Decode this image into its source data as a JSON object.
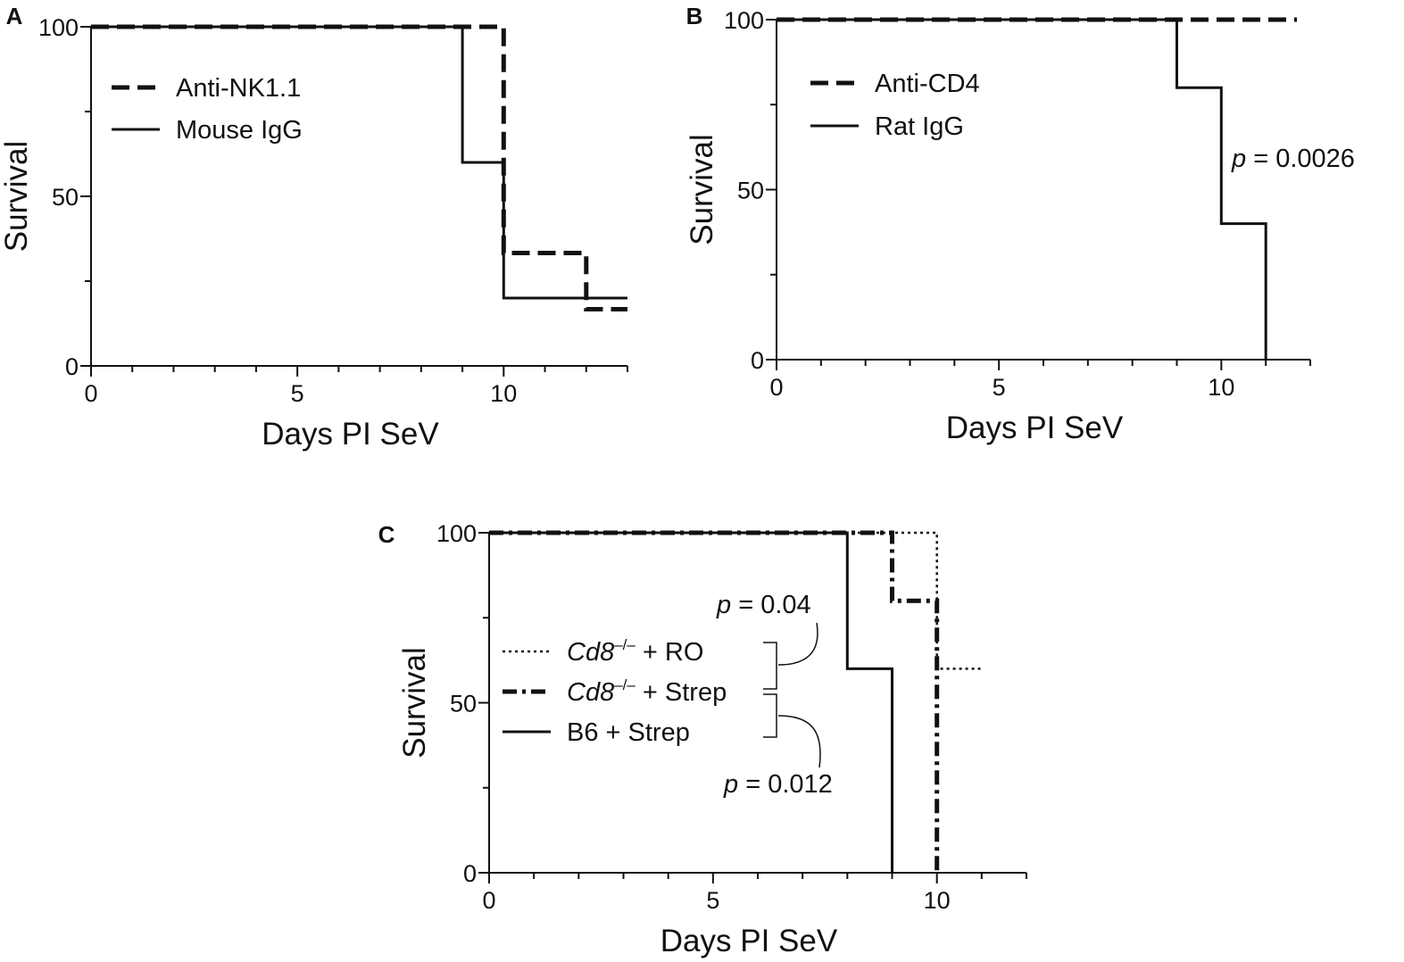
{
  "chart_data": [
    {
      "panel_label": "A",
      "type": "line",
      "step": true,
      "xlabel": "Days PI SeV",
      "ylabel": "Survival",
      "xlim": [
        0,
        13
      ],
      "ylim": [
        0,
        100
      ],
      "xticks": [
        0,
        5,
        10
      ],
      "yticks": [
        0,
        50,
        100
      ],
      "legend_position": "top-left",
      "series": [
        {
          "name": "Anti-NK1.1",
          "style": "dashed",
          "points": [
            [
              0,
              100
            ],
            [
              10,
              100
            ],
            [
              10,
              33.3
            ],
            [
              12,
              33.3
            ],
            [
              12,
              16.7
            ],
            [
              13,
              16.7
            ]
          ]
        },
        {
          "name": "Mouse IgG",
          "style": "solid",
          "points": [
            [
              0,
              100
            ],
            [
              9,
              100
            ],
            [
              9,
              60
            ],
            [
              10,
              60
            ],
            [
              10,
              20
            ],
            [
              13,
              20
            ]
          ]
        }
      ],
      "annotations": []
    },
    {
      "panel_label": "B",
      "type": "line",
      "step": true,
      "xlabel": "Days PI SeV",
      "ylabel": "Survival",
      "xlim": [
        0,
        12
      ],
      "ylim": [
        0,
        100
      ],
      "xticks": [
        0,
        5,
        10
      ],
      "yticks": [
        0,
        50,
        100
      ],
      "legend_position": "top-left",
      "series": [
        {
          "name": "Anti-CD4",
          "style": "dashed",
          "points": [
            [
              0,
              100
            ],
            [
              11.7,
              100
            ]
          ]
        },
        {
          "name": "Rat IgG",
          "style": "solid",
          "points": [
            [
              0,
              100
            ],
            [
              9,
              100
            ],
            [
              9,
              80
            ],
            [
              10,
              80
            ],
            [
              10,
              40
            ],
            [
              11,
              40
            ],
            [
              11,
              0
            ]
          ]
        }
      ],
      "annotations": [
        {
          "italic": "p",
          "text": " = 0.0026"
        }
      ]
    },
    {
      "panel_label": "C",
      "type": "line",
      "step": true,
      "xlabel": "Days PI SeV",
      "ylabel": "Survival",
      "xlim": [
        0,
        12
      ],
      "ylim": [
        0,
        100
      ],
      "xticks": [
        0,
        5,
        10
      ],
      "yticks": [
        0,
        50,
        100
      ],
      "legend_position": "center-left",
      "series": [
        {
          "name_italic": "Cd8",
          "name_sup": "–/–",
          "name_rest": " + RO",
          "style": "dotted",
          "points": [
            [
              0,
              100
            ],
            [
              10,
              100
            ],
            [
              10,
              60
            ],
            [
              11,
              60
            ]
          ]
        },
        {
          "name_italic": "Cd8",
          "name_sup": "–/–",
          "name_rest": " + Strep",
          "style": "dashdot",
          "points": [
            [
              0,
              100
            ],
            [
              9,
              100
            ],
            [
              9,
              80
            ],
            [
              10,
              80
            ],
            [
              10,
              0
            ]
          ]
        },
        {
          "name": "B6 + Strep",
          "style": "solid",
          "points": [
            [
              0,
              100
            ],
            [
              8,
              100
            ],
            [
              8,
              60
            ],
            [
              9,
              60
            ],
            [
              9,
              0
            ]
          ]
        }
      ],
      "annotations": [
        {
          "italic": "p",
          "text": " = 0.04"
        },
        {
          "italic": "p",
          "text": " = 0.012"
        }
      ]
    }
  ]
}
